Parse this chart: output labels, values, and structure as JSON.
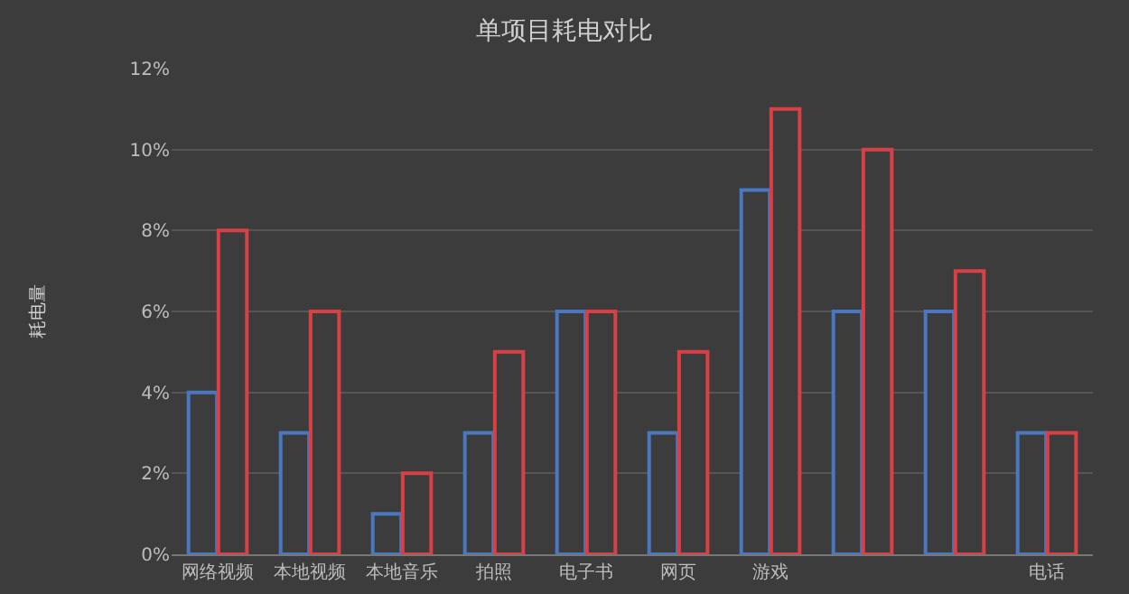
{
  "chart_data": {
    "type": "bar",
    "title": "单项目耗电对比",
    "ylabel": "耗电量",
    "categories": [
      "网络视频",
      "本地视频",
      "本地音乐",
      "拍照",
      "电子书",
      "网页",
      "游戏",
      null,
      null,
      "电话"
    ],
    "series": [
      {
        "color": "#4a78c0",
        "values": [
          4,
          3,
          1,
          3,
          6,
          3,
          9,
          6,
          6,
          3
        ]
      },
      {
        "color": "#d94045",
        "values": [
          8,
          6,
          2,
          5,
          6,
          5,
          11,
          10,
          7,
          3
        ]
      }
    ],
    "ylim": [
      0,
      12
    ],
    "yticks": [
      {
        "value": 0,
        "label": "0%"
      },
      {
        "value": 2,
        "label": "2%"
      },
      {
        "value": 4,
        "label": "4%"
      },
      {
        "value": 6,
        "label": "6%"
      },
      {
        "value": 8,
        "label": "8%"
      },
      {
        "value": 10,
        "label": "10%"
      },
      {
        "value": 12,
        "label": "12%"
      }
    ],
    "grid": "y"
  }
}
